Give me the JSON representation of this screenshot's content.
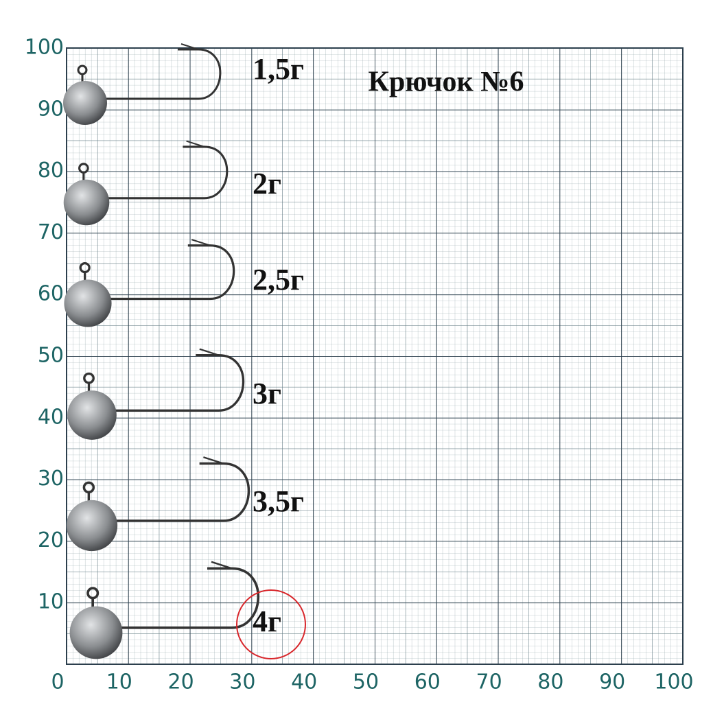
{
  "title": "Крючок №6",
  "x_axis_labels": [
    0,
    10,
    20,
    30,
    40,
    50,
    60,
    70,
    80,
    90,
    100
  ],
  "y_axis_labels": [
    10,
    20,
    30,
    40,
    50,
    60,
    70,
    80,
    90,
    100
  ],
  "items": [
    {
      "label": "1,5г"
    },
    {
      "label": "2г"
    },
    {
      "label": "2,5г"
    },
    {
      "label": "3г"
    },
    {
      "label": "3,5г"
    },
    {
      "label": "4г"
    }
  ]
}
